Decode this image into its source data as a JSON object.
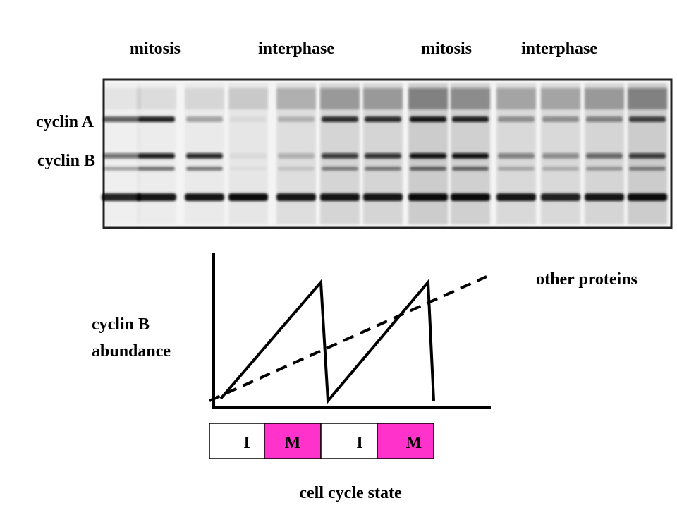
{
  "gel": {
    "phase_labels": [
      "mitosis",
      "interphase",
      "mitosis",
      "interphase"
    ],
    "band_labels": [
      "cyclin A",
      "cyclin B"
    ]
  },
  "graph": {
    "y_label": [
      "cyclin B",
      "abundance"
    ],
    "line_label": "other proteins",
    "x_label": "cell cycle state",
    "states": [
      "I",
      "M",
      "I",
      "M"
    ]
  }
}
